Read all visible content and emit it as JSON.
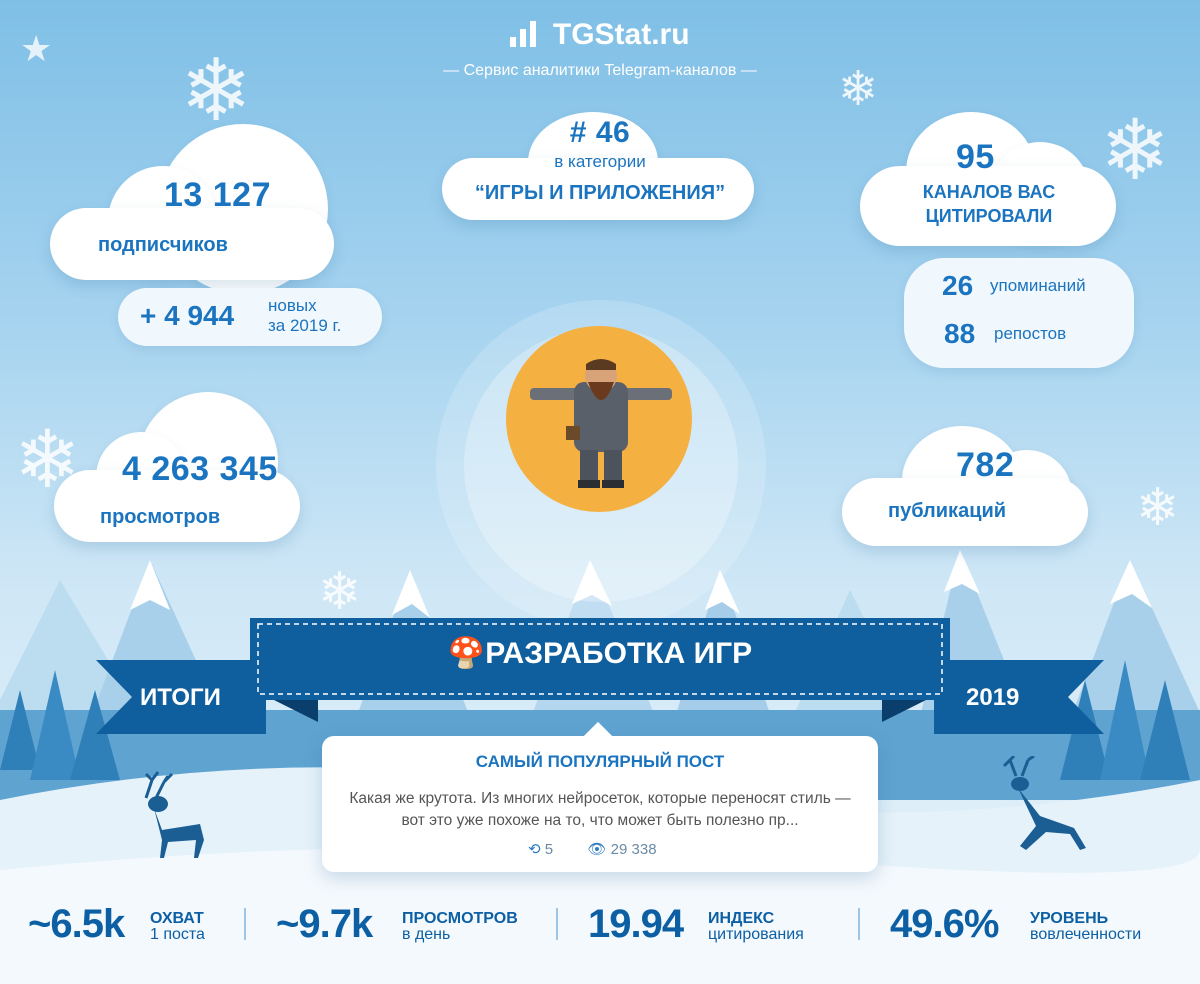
{
  "brand": {
    "name": "TGStat.ru",
    "tagline": "— Сервис аналитики Telegram-каналов —"
  },
  "subscribers": {
    "value": "13 127",
    "label": "подписчиков"
  },
  "growth": {
    "value": "+ 4 944",
    "line1": "новых",
    "line2": "за 2019 г."
  },
  "rank": {
    "value": "# 46",
    "line1": "в категории",
    "category": "“ИГРЫ И ПРИЛОЖЕНИЯ”"
  },
  "citations": {
    "value": "95",
    "line1": "КАНАЛОВ ВАС",
    "line2": "ЦИТИРОВАЛИ"
  },
  "mentions": {
    "value": "26",
    "label": "упоминаний"
  },
  "reposts": {
    "value": "88",
    "label": "репостов"
  },
  "views": {
    "value": "4 263 345",
    "label": "просмотров"
  },
  "publications": {
    "value": "782",
    "label": "публикаций"
  },
  "banner": {
    "title": "РАЗРАБОТКА ИГР",
    "left": "ИТОГИ",
    "right": "2019"
  },
  "popular_post": {
    "heading": "САМЫЙ ПОПУЛЯРНЫЙ ПОСТ",
    "text": "Какая же крутота. Из многих нейросеток, которые переносят стиль — вот это уже похоже на то, что может быть полезно пр...",
    "reposts": "5",
    "views": "29 338"
  },
  "stats": [
    {
      "value": "~6.5k",
      "line1": "ОХВАТ",
      "line2": "1 поста"
    },
    {
      "value": "~9.7k",
      "line1": "ПРОСМОТРОВ",
      "line2": "в день"
    },
    {
      "value": "19.94",
      "line1": "ИНДЕКС",
      "line2": "цитирования"
    },
    {
      "value": "49.6%",
      "line1": "УРОВЕНЬ",
      "line2": "вовлеченности"
    }
  ],
  "colors": {
    "primary": "#1b74bf",
    "banner": "#0f5e9e",
    "sun": "#f5b042",
    "sky": "#8cc7ea"
  },
  "icons": {
    "brand": "bar-chart-icon",
    "banner": "mushroom-icon",
    "repost": "repost-icon",
    "views": "eye-icon"
  }
}
